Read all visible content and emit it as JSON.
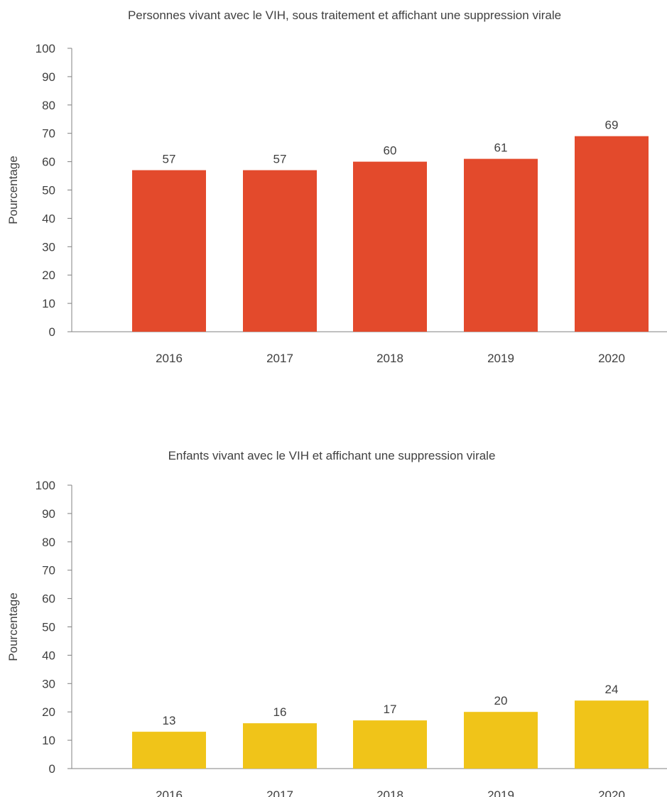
{
  "chart_data": [
    {
      "type": "bar",
      "title": "Personnes vivant avec le VIH, sous traitement et affichant une suppression virale",
      "xlabel": "",
      "ylabel": "Pourcentage",
      "categories": [
        "2016",
        "2017",
        "2018",
        "2019",
        "2020"
      ],
      "values": [
        57,
        57,
        60,
        61,
        69
      ],
      "data_labels": [
        "57",
        "57",
        "60",
        "61",
        "69"
      ],
      "ylim": [
        0,
        100
      ],
      "yticks": [
        "0",
        "10",
        "20",
        "30",
        "40",
        "50",
        "60",
        "70",
        "80",
        "90",
        "100"
      ],
      "color": "#e34a2c",
      "grid": false,
      "legend": "none"
    },
    {
      "type": "bar",
      "title": "Enfants vivant avec le VIH et affichant une suppression virale",
      "xlabel": "",
      "ylabel": "Pourcentage",
      "categories": [
        "2016",
        "2017",
        "2018",
        "2019",
        "2020"
      ],
      "values": [
        13,
        16,
        17,
        20,
        24
      ],
      "data_labels": [
        "13",
        "16",
        "17",
        "20",
        "24"
      ],
      "ylim": [
        0,
        100
      ],
      "yticks": [
        "0",
        "10",
        "20",
        "30",
        "40",
        "50",
        "60",
        "70",
        "80",
        "90",
        "100"
      ],
      "color": "#f0c419",
      "grid": false,
      "legend": "none"
    }
  ]
}
